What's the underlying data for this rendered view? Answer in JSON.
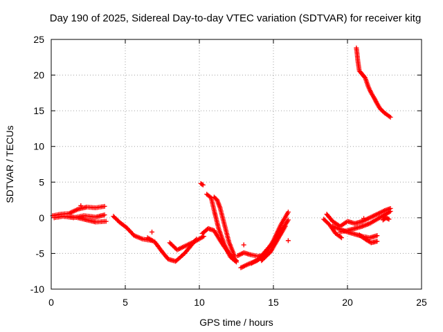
{
  "chart_data": {
    "type": "scatter",
    "title": "Day 190 of 2025, Sidereal Day-to-day VTEC variation (SDTVAR) for receiver kitg",
    "xlabel": "GPS time / hours",
    "ylabel": "SDTVAR / TECUs",
    "xlim": [
      0,
      25
    ],
    "ylim": [
      -10,
      25
    ],
    "xticks": [
      0,
      5,
      10,
      15,
      20,
      25
    ],
    "yticks": [
      -10,
      -5,
      0,
      5,
      10,
      15,
      20,
      25
    ],
    "grid": true,
    "marker": "+",
    "color": "#ff0000",
    "segments": [
      {
        "x": [
          0.1,
          0.6,
          1.2,
          1.8,
          2.4,
          3.0,
          3.6
        ],
        "y": [
          0.3,
          0.5,
          0.6,
          1.2,
          1.5,
          1.4,
          1.6
        ]
      },
      {
        "x": [
          0.2,
          0.8,
          1.5,
          2.2,
          3.0,
          3.6
        ],
        "y": [
          0.0,
          0.2,
          0.0,
          0.3,
          0.1,
          0.4
        ]
      },
      {
        "x": [
          1.2,
          1.8,
          2.4,
          3.0,
          3.7
        ],
        "y": [
          0.2,
          0.0,
          -0.3,
          -0.6,
          -0.5
        ]
      },
      {
        "x": [
          4.2,
          4.6,
          5.1,
          5.6,
          6.2,
          6.8
        ],
        "y": [
          0.2,
          -0.6,
          -1.4,
          -2.5,
          -3.0,
          -3.2
        ]
      },
      {
        "x": [
          6.5,
          7.0,
          7.5,
          7.9,
          8.4,
          9.0,
          9.8
        ],
        "y": [
          -2.8,
          -3.4,
          -4.8,
          -5.8,
          -6.1,
          -5.0,
          -3.0
        ]
      },
      {
        "x": [
          8.0,
          8.5,
          9.2,
          9.8,
          10.3
        ],
        "y": [
          -3.5,
          -4.5,
          -3.8,
          -3.2,
          -2.6
        ]
      },
      {
        "x": [
          10.1,
          10.25
        ],
        "y": [
          4.8,
          4.6
        ]
      },
      {
        "x": [
          10.5,
          10.8,
          11.0,
          11.3,
          11.7,
          12.1,
          12.5
        ],
        "y": [
          3.3,
          2.8,
          1.0,
          -1.5,
          -3.8,
          -5.5,
          -6.2
        ]
      },
      {
        "x": [
          11.0,
          11.2,
          11.4,
          11.7,
          12.0,
          12.4
        ],
        "y": [
          2.9,
          2.5,
          1.4,
          -1.0,
          -3.4,
          -5.5
        ]
      },
      {
        "x": [
          10.2,
          10.6,
          11.0,
          11.5,
          12.0,
          12.5
        ],
        "y": [
          -2.2,
          -1.5,
          -1.8,
          -3.5,
          -5.0,
          -6.0
        ]
      },
      {
        "x": [
          12.6,
          13.0,
          13.5,
          14.0,
          14.4
        ],
        "y": [
          -5.3,
          -4.9,
          -5.2,
          -5.4,
          -5.2
        ]
      },
      {
        "x": [
          12.8,
          13.3,
          13.9,
          14.5,
          15.0,
          15.5,
          16.0
        ],
        "y": [
          -7.0,
          -6.5,
          -6.0,
          -5.0,
          -3.2,
          -1.0,
          0.8
        ]
      },
      {
        "x": [
          13.5,
          14.0,
          14.5,
          15.0,
          15.5,
          16.0
        ],
        "y": [
          -6.4,
          -5.8,
          -4.6,
          -3.4,
          -2.0,
          -0.3
        ]
      },
      {
        "x": [
          14.2,
          14.8,
          15.3,
          15.8
        ],
        "y": [
          -6.0,
          -4.8,
          -3.0,
          -1.2
        ]
      },
      {
        "x": [
          18.4,
          18.8,
          19.2,
          19.6
        ],
        "y": [
          -0.2,
          -1.0,
          -2.2,
          -2.8
        ]
      },
      {
        "x": [
          18.6,
          19.0,
          19.5,
          20.0,
          20.5,
          21.0,
          21.5,
          22.0,
          22.5,
          22.9
        ],
        "y": [
          0.5,
          -0.5,
          -1.2,
          -0.5,
          -0.8,
          -0.5,
          0.0,
          0.5,
          1.0,
          1.3
        ]
      },
      {
        "x": [
          19.5,
          20.0,
          20.5,
          21.0,
          21.5,
          22.0,
          22.5,
          22.9
        ],
        "y": [
          -2.0,
          -1.8,
          -1.5,
          -1.2,
          -0.8,
          -0.2,
          0.4,
          0.9
        ]
      },
      {
        "x": [
          19.0,
          19.5,
          20.0,
          20.5,
          21.0,
          21.5,
          22.0
        ],
        "y": [
          -1.2,
          -1.6,
          -2.0,
          -2.3,
          -2.6,
          -2.8,
          -2.5
        ]
      },
      {
        "x": [
          20.8,
          21.2,
          21.6,
          22.0
        ],
        "y": [
          -2.4,
          -3.0,
          -3.5,
          -3.3
        ]
      },
      {
        "x": [
          22.4,
          22.6,
          22.8
        ],
        "y": [
          -0.3,
          0.0,
          -0.2
        ]
      },
      {
        "x": [
          20.6,
          20.65,
          20.7,
          20.8,
          21.0,
          21.2,
          21.4,
          21.6,
          21.8,
          22.0,
          22.2,
          22.5,
          22.9
        ],
        "y": [
          23.8,
          23.0,
          22.0,
          20.6,
          20.1,
          19.6,
          18.4,
          17.5,
          16.8,
          16.0,
          15.3,
          14.7,
          14.1
        ]
      }
    ],
    "isolated_points": [
      {
        "x": 2.0,
        "y": 1.7
      },
      {
        "x": 4.6,
        "y": -0.6
      },
      {
        "x": 6.8,
        "y": -2.0
      },
      {
        "x": 13.0,
        "y": -3.8
      },
      {
        "x": 16.0,
        "y": -3.2
      },
      {
        "x": 21.1,
        "y": -0.1
      }
    ]
  }
}
